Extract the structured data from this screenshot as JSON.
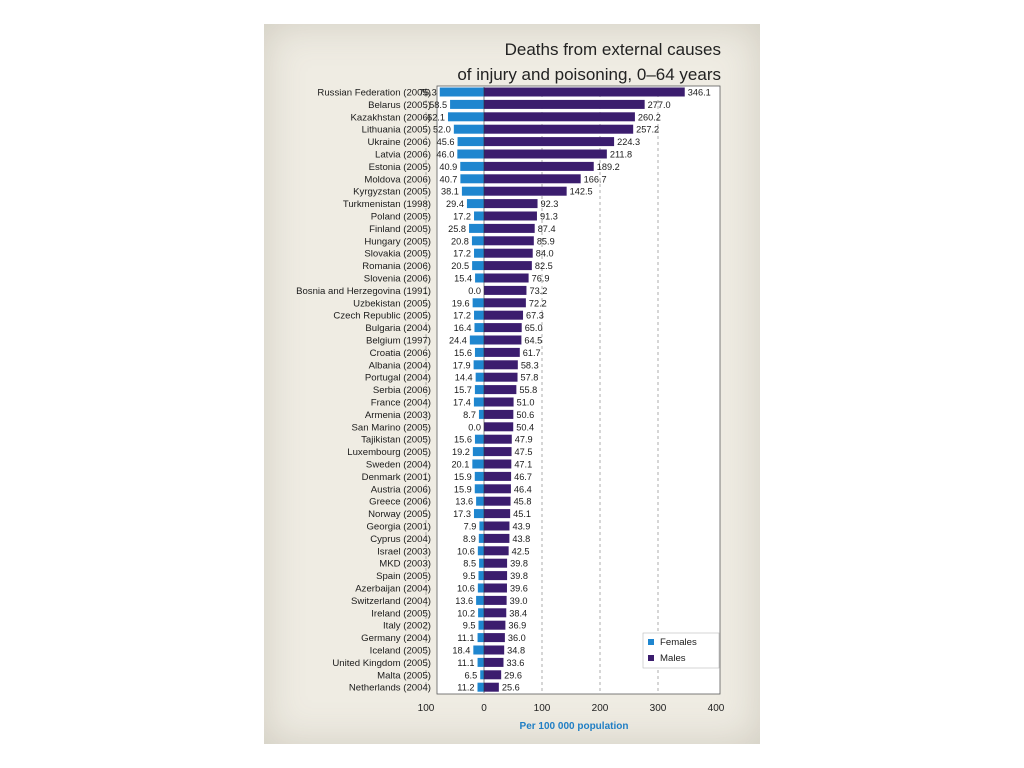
{
  "chart_data": {
    "type": "bar",
    "orientation": "horizontal",
    "title_lines": [
      "Deaths from external causes",
      "of injury and poisoning, 0–64 years"
    ],
    "xlabel": "Per 100 000 population",
    "xlim": [
      -100,
      400
    ],
    "xticks": [
      -100,
      0,
      100,
      200,
      300,
      400
    ],
    "xtick_labels": [
      "100",
      "0",
      "100",
      "200",
      "300",
      "400"
    ],
    "grid": true,
    "legend_position": "bottom-right",
    "categories": [
      "Russian Federation (2005)",
      "Belarus (2005)",
      "Kazakhstan (2006)",
      "Lithuania (2005)",
      "Ukraine (2006)",
      "Latvia (2006)",
      "Estonia (2005)",
      "Moldova (2006)",
      "Kyrgyzstan (2005)",
      "Turkmenistan (1998)",
      "Poland (2005)",
      "Finland (2005)",
      "Hungary (2005)",
      "Slovakia (2005)",
      "Romania (2006)",
      "Slovenia (2006)",
      "Bosnia and Herzegovina (1991)",
      "Uzbekistan (2005)",
      "Czech Republic (2005)",
      "Bulgaria (2004)",
      "Belgium (1997)",
      "Croatia (2006)",
      "Albania (2004)",
      "Portugal (2004)",
      "Serbia (2006)",
      "France (2004)",
      "Armenia (2003)",
      "San Marino (2005)",
      "Tajikistan (2005)",
      "Luxembourg (2005)",
      "Sweden (2004)",
      "Denmark (2001)",
      "Austria (2006)",
      "Greece (2006)",
      "Norway (2005)",
      "Georgia (2001)",
      "Cyprus (2004)",
      "Israel (2003)",
      "MKD (2003)",
      "Spain (2005)",
      "Azerbaijan (2004)",
      "Switzerland (2004)",
      "Ireland (2005)",
      "Italy (2002)",
      "Germany (2004)",
      "Iceland (2005)",
      "United Kingdom (2005)",
      "Malta (2005)",
      "Netherlands (2004)"
    ],
    "series": [
      {
        "name": "Females",
        "color": "#1f86cf",
        "values": [
          76.3,
          58.5,
          62.1,
          52.0,
          45.6,
          46.0,
          40.9,
          40.7,
          38.1,
          29.4,
          17.2,
          25.8,
          20.8,
          17.2,
          20.5,
          15.4,
          0.0,
          19.6,
          17.2,
          16.4,
          24.4,
          15.6,
          17.9,
          14.4,
          15.7,
          17.4,
          8.7,
          0.0,
          15.6,
          19.2,
          20.1,
          15.9,
          15.9,
          13.6,
          17.3,
          7.9,
          8.9,
          10.6,
          8.5,
          9.5,
          10.6,
          13.6,
          10.2,
          9.5,
          11.1,
          18.4,
          11.1,
          6.5,
          11.2
        ],
        "labels": [
          "76.3",
          "58.5",
          "62.1",
          "52.0",
          "45.6",
          "46.0",
          "40.9",
          "40.7",
          "38.1",
          "29.4",
          "17.2",
          "25.8",
          "20.8",
          "17.2",
          "20.5",
          "15.4",
          "0.0",
          "19.6",
          "17.2",
          "16.4",
          "24.4",
          "15.6",
          "17.9",
          "14.4",
          "15.7",
          "17.4",
          "8.7",
          "0.0",
          "15.6",
          "19.2",
          "20.1",
          "15.9",
          "15.9",
          "13.6",
          "17.3",
          "7.9",
          "8.9",
          "10.6",
          "8.5",
          "9.5",
          "10.6",
          "13.6",
          "10.2",
          "9.5",
          "11.1",
          "18.4",
          "11.1",
          "6.5",
          "11.2"
        ]
      },
      {
        "name": "Males",
        "color": "#3b1d6e",
        "values": [
          346.1,
          277.0,
          260.2,
          257.2,
          224.3,
          211.8,
          189.2,
          166.7,
          142.5,
          92.3,
          91.3,
          87.4,
          85.9,
          84.0,
          82.5,
          76.9,
          73.2,
          72.2,
          67.3,
          65.0,
          64.5,
          61.7,
          58.3,
          57.8,
          55.8,
          51.0,
          50.6,
          50.4,
          47.9,
          47.5,
          47.1,
          46.7,
          46.4,
          45.8,
          45.1,
          43.9,
          43.8,
          42.5,
          39.8,
          39.8,
          39.6,
          39.0,
          38.4,
          36.9,
          36.0,
          34.8,
          33.6,
          29.6,
          25.6
        ],
        "labels": [
          "346.1",
          "277.0",
          "260.2",
          "257.2",
          "224.3",
          "211.8",
          "189.2",
          "166.7",
          "142.5",
          "92.3",
          "91.3",
          "87.4",
          "85.9",
          "84.0",
          "82.5",
          "76.9",
          "73.2",
          "72.2",
          "67.3",
          "65.0",
          "64.5",
          "61.7",
          "58.3",
          "57.8",
          "55.8",
          "51.0",
          "50.6",
          "50.4",
          "47.9",
          "47.5",
          "47.1",
          "46.7",
          "46.4",
          "45.8",
          "45.1",
          "43.9",
          "43.8",
          "42.5",
          "39.8",
          "39.8",
          "39.6",
          "39.0",
          "38.4",
          "36.9",
          "36.0",
          "34.8",
          "33.6",
          "29.6",
          "25.6"
        ]
      }
    ]
  }
}
